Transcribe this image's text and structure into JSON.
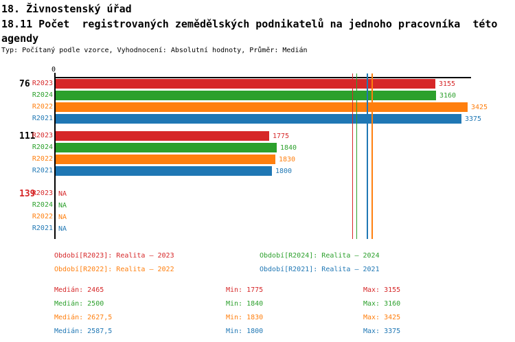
{
  "header": {
    "title": "18. Živnostenský úřad",
    "subtitle_lines": [
      "18.11 Počet  registrovaných zemědělských podnikatelů na jednoho pracovníka  této",
      "agendy"
    ],
    "meta": "Typ: Počítaný podle vzorce, Vyhodnocení: Absolutní hodnoty, Průměr: Medián"
  },
  "colors": {
    "R2023": "#d62728",
    "R2024": "#2ca02c",
    "R2022": "#ff7f0e",
    "R2021": "#1f77b4",
    "axis": "#000000",
    "group_label": "#000000",
    "group_label_na": "#d62728"
  },
  "chart_data": {
    "type": "bar",
    "orientation": "horizontal",
    "axis_zero_label": "0",
    "x_axis_min": 0,
    "x_axis_max_visible": 3425,
    "series_order": [
      "R2023",
      "R2024",
      "R2022",
      "R2021"
    ],
    "na_text": "NA",
    "groups": [
      {
        "label": "76",
        "label_color_key": "group_label",
        "bars": [
          {
            "series": "R2023",
            "value": 3155,
            "display": "3155"
          },
          {
            "series": "R2024",
            "value": 3160,
            "display": "3160"
          },
          {
            "series": "R2022",
            "value": 3425,
            "display": "3425"
          },
          {
            "series": "R2021",
            "value": 3375,
            "display": "3375"
          }
        ]
      },
      {
        "label": "111",
        "label_color_key": "group_label",
        "bars": [
          {
            "series": "R2023",
            "value": 1775,
            "display": "1775"
          },
          {
            "series": "R2024",
            "value": 1840,
            "display": "1840"
          },
          {
            "series": "R2022",
            "value": 1830,
            "display": "1830"
          },
          {
            "series": "R2021",
            "value": 1800,
            "display": "1800"
          }
        ]
      },
      {
        "label": "139",
        "label_color_key": "group_label_na",
        "bars": [
          {
            "series": "R2023",
            "value": null,
            "display": "NA"
          },
          {
            "series": "R2024",
            "value": null,
            "display": "NA"
          },
          {
            "series": "R2022",
            "value": null,
            "display": "NA"
          },
          {
            "series": "R2021",
            "value": null,
            "display": "NA"
          }
        ]
      }
    ],
    "median_lines": {
      "R2023": 2465,
      "R2024": 2500,
      "R2022": 2627.5,
      "R2021": 2587.5
    }
  },
  "legend": {
    "items": [
      {
        "series": "R2023",
        "text": "Období[R2023]: Realita – 2023"
      },
      {
        "series": "R2024",
        "text": "Období[R2024]: Realita – 2024"
      },
      {
        "series": "R2022",
        "text": "Období[R2022]: Realita – 2022"
      },
      {
        "series": "R2021",
        "text": "Období[R2021]: Realita – 2021"
      }
    ]
  },
  "stats": {
    "labels": {
      "median": "Medián",
      "min": "Min",
      "max": "Max"
    },
    "rows": [
      {
        "series": "R2023",
        "median": "2465",
        "min": "1775",
        "max": "3155"
      },
      {
        "series": "R2024",
        "median": "2500",
        "min": "1840",
        "max": "3160"
      },
      {
        "series": "R2022",
        "median": "2627,5",
        "min": "1830",
        "max": "3425"
      },
      {
        "series": "R2021",
        "median": "2587,5",
        "min": "1800",
        "max": "3375"
      }
    ]
  }
}
